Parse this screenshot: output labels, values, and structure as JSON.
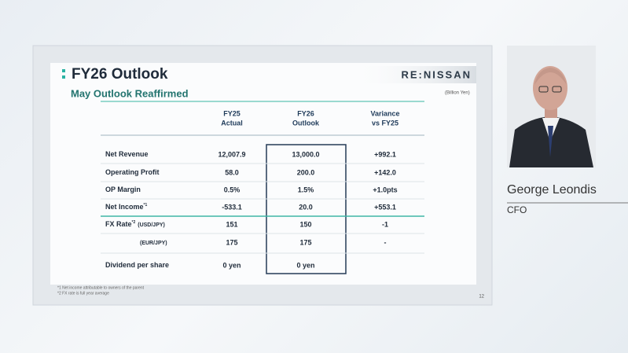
{
  "slide": {
    "title": "FY26 Outlook",
    "brand": "RE:NISSAN",
    "subtitle": "May Outlook Reaffirmed",
    "unit": "(Billion Yen)",
    "columns": [
      [
        "FY25",
        "Actual"
      ],
      [
        "FY26",
        "Outlook"
      ],
      [
        "Variance",
        "vs FY25"
      ]
    ],
    "rows": [
      {
        "label": "Net Revenue",
        "values": [
          "12,007.9",
          "13,000.0",
          "+992.1"
        ]
      },
      {
        "label": "Operating Profit",
        "values": [
          "58.0",
          "200.0",
          "+142.0"
        ]
      },
      {
        "label": "OP Margin",
        "values": [
          "0.5%",
          "1.5%",
          "+1.0pts"
        ]
      },
      {
        "label": "Net Income",
        "note": "*1",
        "values": [
          "-533.1",
          "20.0",
          "+553.1"
        ]
      },
      {
        "label": "FX Rate",
        "note": "*2",
        "unit": "(USD/JPY)",
        "values": [
          "151",
          "150",
          "-1"
        ]
      },
      {
        "unit": "(EUR/JPY)",
        "values": [
          "175",
          "175",
          "-"
        ]
      },
      {
        "label": "Dividend per share",
        "values": [
          "0 yen",
          "0 yen",
          ""
        ]
      }
    ],
    "footnotes": [
      "*1 Net income attributable to owners of the parent",
      "*2 FX rate is full year average"
    ],
    "page": "12"
  },
  "speaker": {
    "name": "George Leondis",
    "role": "CFO"
  }
}
